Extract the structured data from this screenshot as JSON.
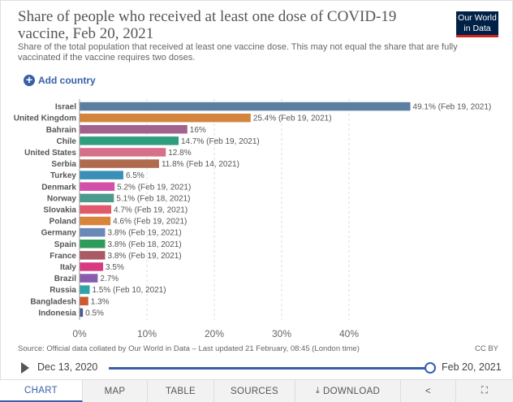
{
  "header": {
    "title": "Share of people who received at least one dose of COVID-19 vaccine, Feb 20, 2021",
    "subtitle": "Share of the total population that received at least one vaccine dose. This may not equal the share that are fully vaccinated if the vaccine requires two doses.",
    "logo_line1": "Our World",
    "logo_line2": "in Data"
  },
  "controls": {
    "add_country_label": "Add country",
    "add_icon": "plus-circle-icon"
  },
  "chart_data": {
    "type": "bar",
    "orientation": "horizontal",
    "title": "Share of people who received at least one dose of COVID-19 vaccine, Feb 20, 2021",
    "xlim": [
      0,
      50
    ],
    "x_ticks": [
      "0%",
      "10%",
      "20%",
      "30%",
      "40%"
    ],
    "x_tick_values": [
      0,
      10,
      20,
      30,
      40
    ],
    "grid": true,
    "bars": [
      {
        "country": "Israel",
        "value": 49.1,
        "label": "49.1% (Feb 19, 2021)",
        "color": "#5b7fa0"
      },
      {
        "country": "United Kingdom",
        "value": 25.4,
        "label": "25.4% (Feb 19, 2021)",
        "color": "#d3843d"
      },
      {
        "country": "Bahrain",
        "value": 16,
        "label": "16%",
        "color": "#a3628e"
      },
      {
        "country": "Chile",
        "value": 14.7,
        "label": "14.7% (Feb 19, 2021)",
        "color": "#2f9e7d"
      },
      {
        "country": "United States",
        "value": 12.8,
        "label": "12.8%",
        "color": "#d66f8a"
      },
      {
        "country": "Serbia",
        "value": 11.8,
        "label": "11.8% (Feb 14, 2021)",
        "color": "#b06b4f"
      },
      {
        "country": "Turkey",
        "value": 6.5,
        "label": "6.5%",
        "color": "#3a8fb7"
      },
      {
        "country": "Denmark",
        "value": 5.2,
        "label": "5.2% (Feb 19, 2021)",
        "color": "#d44fa8"
      },
      {
        "country": "Norway",
        "value": 5.1,
        "label": "5.1% (Feb 18, 2021)",
        "color": "#4c9a8c"
      },
      {
        "country": "Slovakia",
        "value": 4.7,
        "label": "4.7% (Feb 19, 2021)",
        "color": "#e05a6a"
      },
      {
        "country": "Poland",
        "value": 4.6,
        "label": "4.6% (Feb 19, 2021)",
        "color": "#d8843a"
      },
      {
        "country": "Germany",
        "value": 3.8,
        "label": "3.8% (Feb 19, 2021)",
        "color": "#6b89b6"
      },
      {
        "country": "Spain",
        "value": 3.8,
        "label": "3.8% (Feb 18, 2021)",
        "color": "#2e9b5a"
      },
      {
        "country": "France",
        "value": 3.8,
        "label": "3.8% (Feb 19, 2021)",
        "color": "#a95a64"
      },
      {
        "country": "Italy",
        "value": 3.5,
        "label": "3.5%",
        "color": "#d83a82"
      },
      {
        "country": "Brazil",
        "value": 2.7,
        "label": "2.7%",
        "color": "#8a5cad"
      },
      {
        "country": "Russia",
        "value": 1.5,
        "label": "1.5% (Feb 10, 2021)",
        "color": "#2fa3a8"
      },
      {
        "country": "Bangladesh",
        "value": 1.3,
        "label": "1.3%",
        "color": "#d0582e"
      },
      {
        "country": "Indonesia",
        "value": 0.5,
        "label": "0.5%",
        "color": "#4a5a8c"
      }
    ]
  },
  "footer": {
    "source": "Source: Official data collated by Our World in Data – Last updated 21 February, 08:45 (London time)",
    "license": "CC BY"
  },
  "timeline": {
    "start": "Dec 13, 2020",
    "end": "Feb 20, 2021",
    "position": 1.0
  },
  "tabs": [
    {
      "label": "CHART",
      "active": true
    },
    {
      "label": "MAP",
      "active": false
    },
    {
      "label": "TABLE",
      "active": false
    },
    {
      "label": "SOURCES",
      "active": false
    },
    {
      "label": "DOWNLOAD",
      "active": false
    }
  ],
  "tab_icons": {
    "share": "share-icon",
    "fullscreen": "fullscreen-icon",
    "download": "download-icon"
  }
}
